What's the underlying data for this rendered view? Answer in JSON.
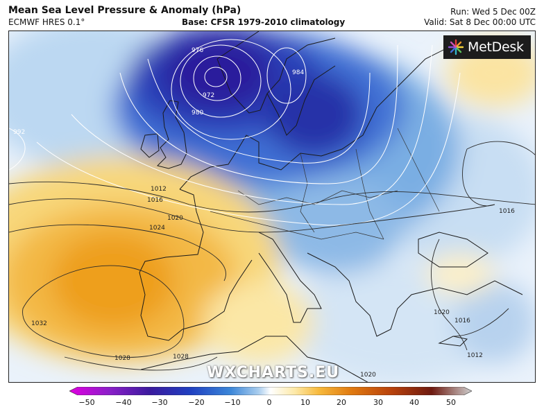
{
  "header": {
    "title": "Mean Sea Level Pressure & Anomaly (hPa)",
    "model": "ECMWF HRES 0.1°",
    "base": "Base: CFSR 1979-2010 climatology",
    "run": "Run: Wed 5 Dec 00Z",
    "valid": "Valid: Sat 8 Dec 00:00 UTC"
  },
  "logo": {
    "text": "MetDesk"
  },
  "watermark": "WXCHARTS.EU",
  "isobar_labels": [
    "976",
    "972",
    "980",
    "984",
    "992",
    "1012",
    "1016",
    "1020",
    "1024",
    "1032",
    "1028",
    "1028",
    "1016",
    "1020",
    "1016",
    "1012",
    "1020"
  ],
  "colorbar": {
    "ticks": [
      "−50",
      "−40",
      "−30",
      "−20",
      "−10",
      "0",
      "10",
      "20",
      "30",
      "40",
      "50"
    ],
    "colors": [
      "#e000e0",
      "#8a1fc8",
      "#3a1a9e",
      "#1f3fc0",
      "#3b86d8",
      "#a9cdee",
      "#ffffff",
      "#fde9a8",
      "#f7b93c",
      "#e07a10",
      "#b8420c",
      "#6e1a10",
      "#cfcfcf"
    ]
  },
  "colors": {
    "low_core": "#2a1a9a",
    "low_mid": "#2f52c8",
    "anomaly_light_blue": "#a9cdee",
    "high_core": "#f0a020",
    "high_light": "#fbe39a"
  }
}
